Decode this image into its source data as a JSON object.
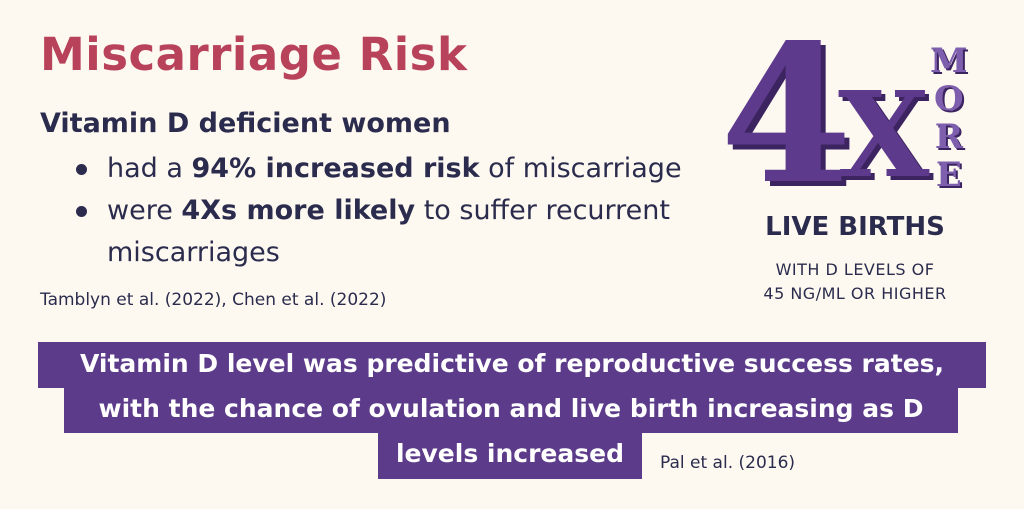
{
  "title": "Miscarriage Risk",
  "subtitle": "Vitamin D deficient women",
  "bullets": [
    {
      "pre": "had a ",
      "bold": "94% increased risk",
      "post": " of miscarriage"
    },
    {
      "pre": "were ",
      "bold": "4Xs more likely",
      "post": " to suffer recurrent miscarriages"
    }
  ],
  "citation_left": "Tamblyn et al. (2022), Chen et al. (2022)",
  "stat": {
    "number": "4",
    "multiplier": "X",
    "more_letters": [
      "M",
      "O",
      "R",
      "E"
    ],
    "headline": "LIVE BIRTHS",
    "sub_line1": "WITH D LEVELS OF",
    "sub_line2": "45 NG/ML OR HIGHER"
  },
  "banner": {
    "line1": "Vitamin D level was predictive of reproductive success rates,",
    "line2": "with the chance of ovulation and live birth increasing as D",
    "line3": "levels increased"
  },
  "citation_right": "Pal et al. (2016)",
  "colors": {
    "title": "#b8425a",
    "text": "#2b2c4d",
    "purple": "#5c3c8a",
    "background": "#fdf9f1"
  }
}
